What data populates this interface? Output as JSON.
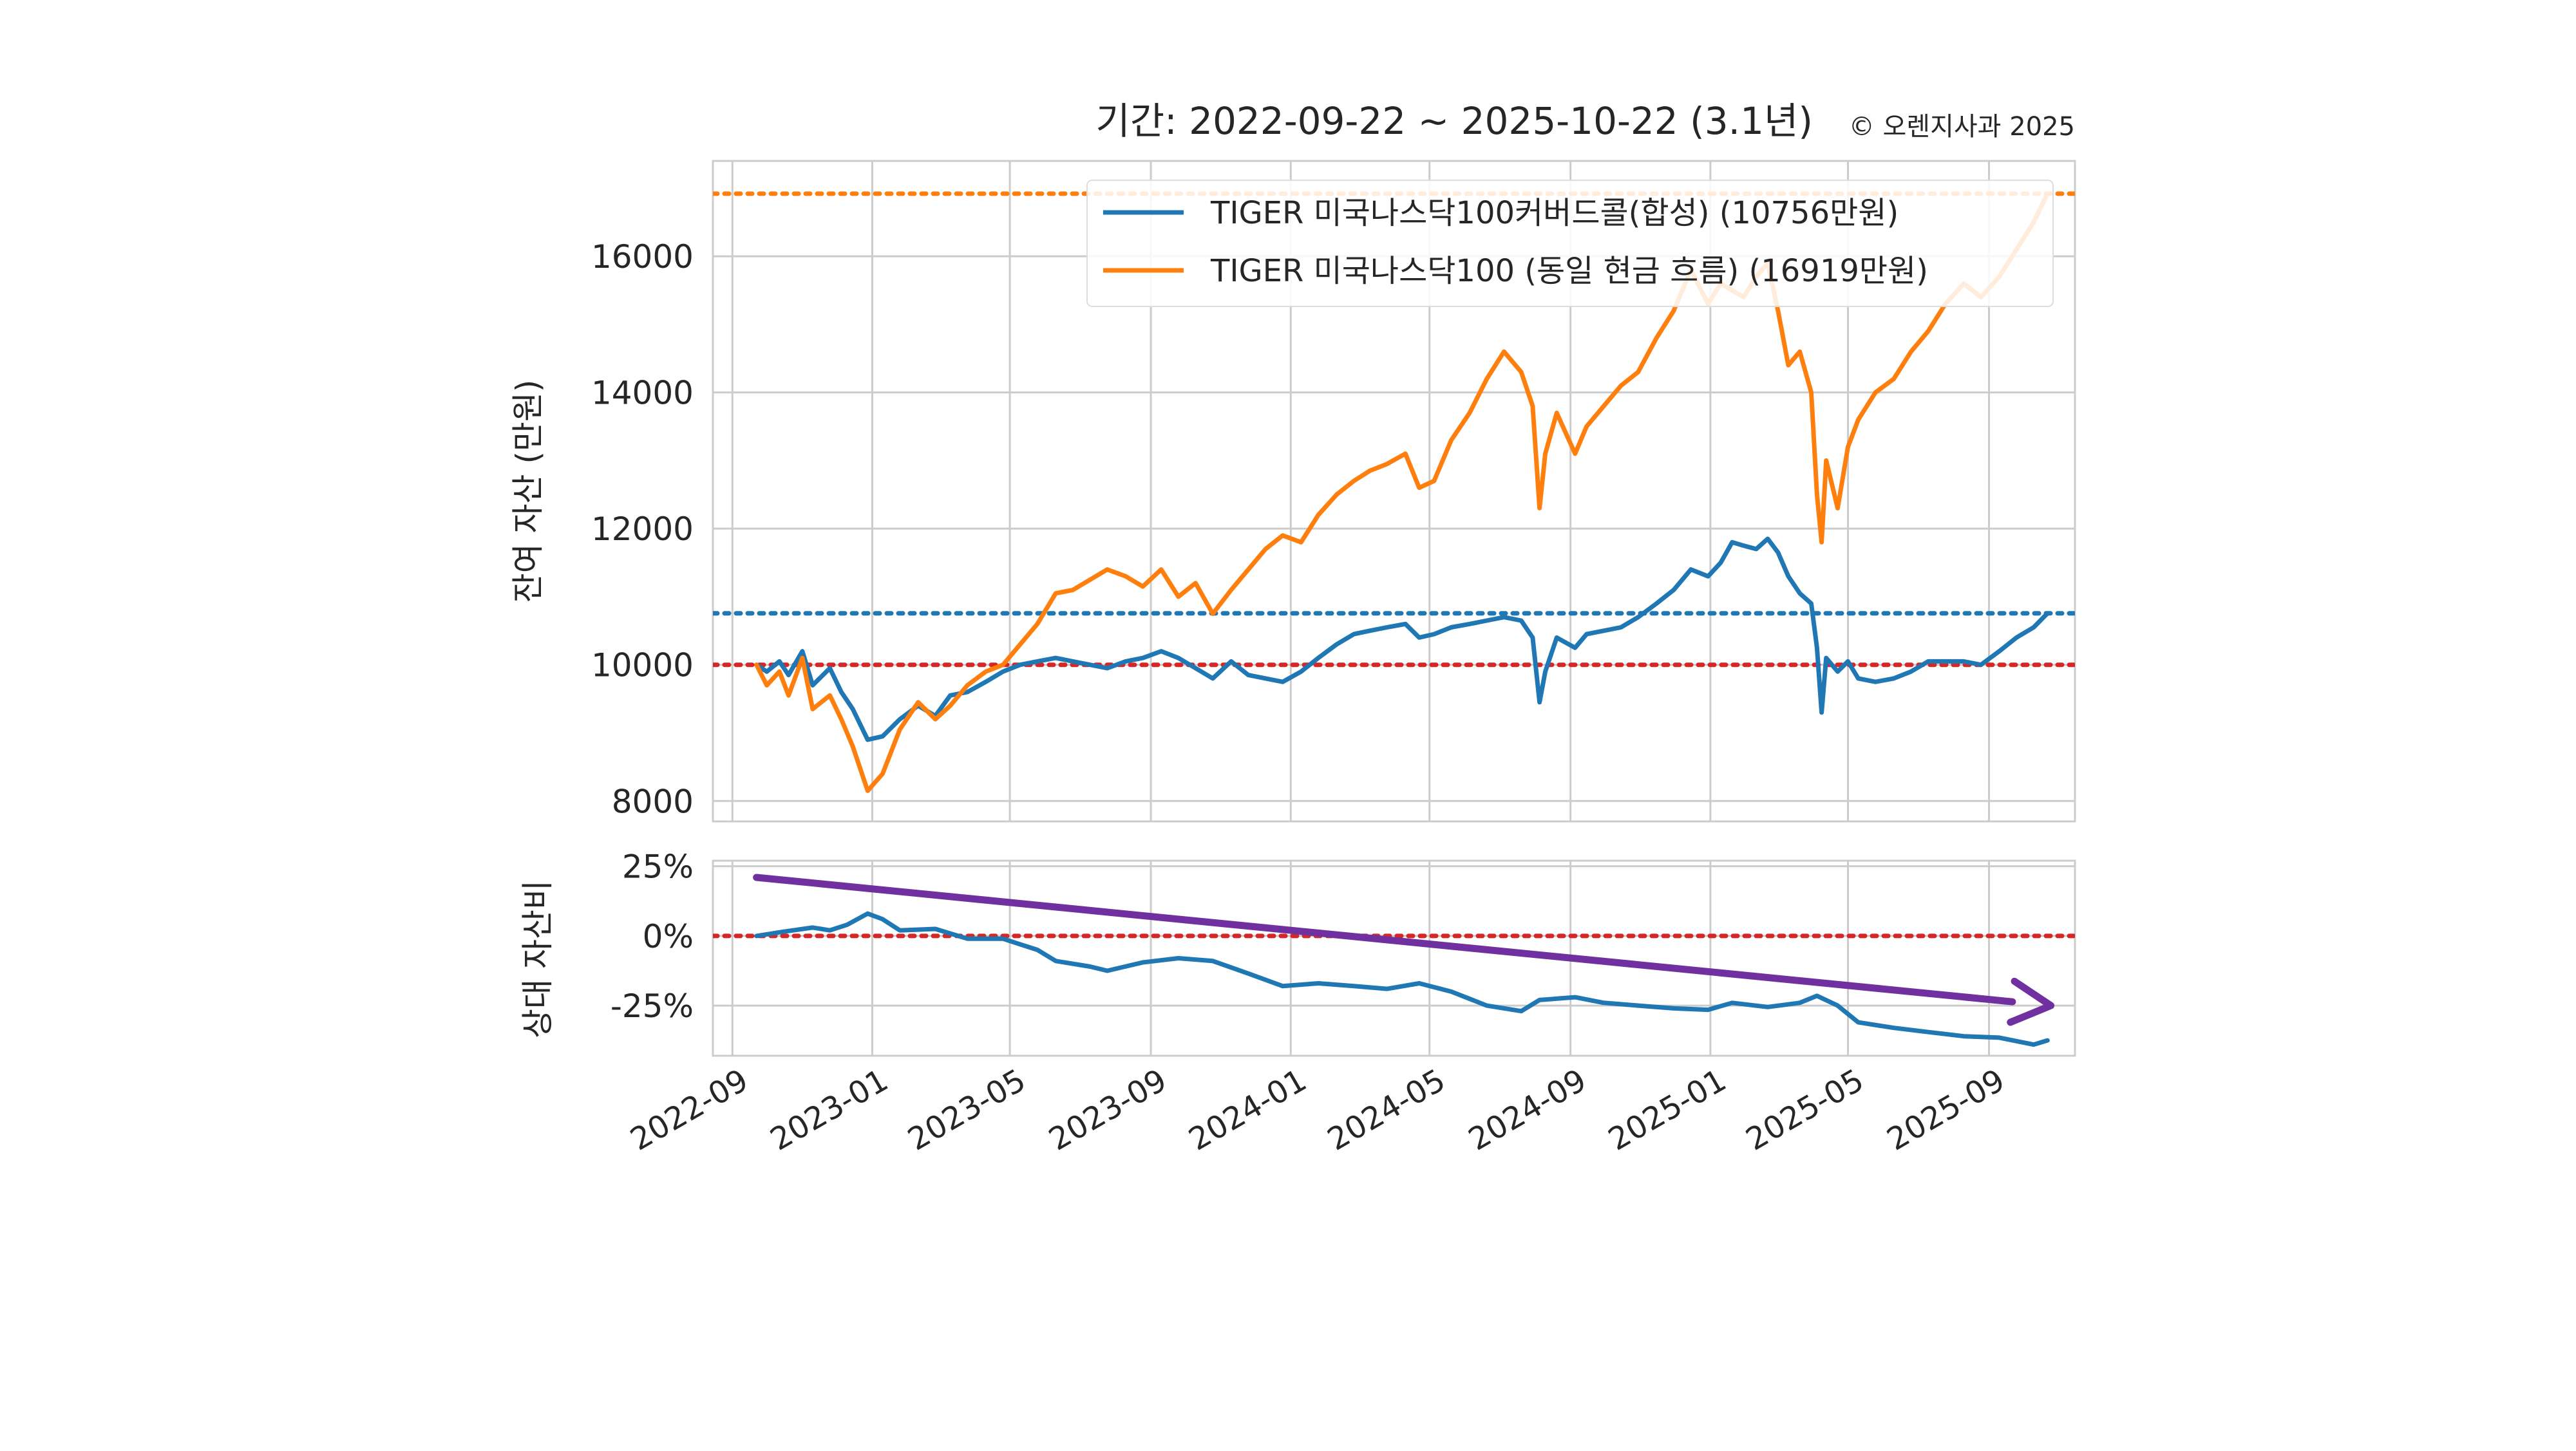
{
  "chart_data": [
    {
      "type": "line",
      "panel": "main",
      "title": "기간: 2022-09-22 ~ 2025-10-22 (3.1년)",
      "title_note": "© 오렌지사과 2025",
      "ylabel": "잔여 자산 (만원)",
      "ylim": [
        7700,
        17400
      ],
      "yticks": [
        8000,
        10000,
        12000,
        14000,
        16000
      ],
      "xlim": [
        "2022-08-15",
        "2025-11-15"
      ],
      "xticks": [
        "2022-09",
        "2023-01",
        "2023-05",
        "2023-09",
        "2024-01",
        "2024-05",
        "2024-09",
        "2025-01",
        "2025-05",
        "2025-09"
      ],
      "grid": true,
      "legend_position": "top-right",
      "reference_lines": [
        {
          "value": 16919,
          "color": "#ff7f0e",
          "style": "dotted"
        },
        {
          "value": 10756,
          "color": "#1f77b4",
          "style": "dotted"
        },
        {
          "value": 10000,
          "color": "#d62728",
          "style": "dotted"
        }
      ],
      "series": [
        {
          "name": "TIGER 미국나스닥100커버드콜(합성)  (10756만원)",
          "color": "#1f77b4",
          "points": [
            [
              "2022-09-22",
              10000
            ],
            [
              "2022-10-01",
              9900
            ],
            [
              "2022-10-12",
              10050
            ],
            [
              "2022-10-20",
              9850
            ],
            [
              "2022-11-01",
              10200
            ],
            [
              "2022-11-10",
              9700
            ],
            [
              "2022-11-25",
              9950
            ],
            [
              "2022-12-05",
              9600
            ],
            [
              "2022-12-15",
              9350
            ],
            [
              "2022-12-28",
              8900
            ],
            [
              "2023-01-10",
              8950
            ],
            [
              "2023-01-25",
              9200
            ],
            [
              "2023-02-10",
              9400
            ],
            [
              "2023-02-25",
              9250
            ],
            [
              "2023-03-10",
              9550
            ],
            [
              "2023-03-25",
              9600
            ],
            [
              "2023-04-10",
              9750
            ],
            [
              "2023-04-25",
              9900
            ],
            [
              "2023-05-10",
              10000
            ],
            [
              "2023-05-25",
              10050
            ],
            [
              "2023-06-10",
              10100
            ],
            [
              "2023-06-25",
              10050
            ],
            [
              "2023-07-10",
              10000
            ],
            [
              "2023-07-25",
              9950
            ],
            [
              "2023-08-10",
              10050
            ],
            [
              "2023-08-25",
              10100
            ],
            [
              "2023-09-10",
              10200
            ],
            [
              "2023-09-25",
              10100
            ],
            [
              "2023-10-10",
              9950
            ],
            [
              "2023-10-25",
              9800
            ],
            [
              "2023-11-10",
              10050
            ],
            [
              "2023-11-25",
              9850
            ],
            [
              "2023-12-10",
              9800
            ],
            [
              "2023-12-25",
              9750
            ],
            [
              "2024-01-10",
              9900
            ],
            [
              "2024-01-25",
              10100
            ],
            [
              "2024-02-10",
              10300
            ],
            [
              "2024-02-25",
              10450
            ],
            [
              "2024-03-10",
              10500
            ],
            [
              "2024-03-25",
              10550
            ],
            [
              "2024-04-10",
              10600
            ],
            [
              "2024-04-22",
              10400
            ],
            [
              "2024-05-05",
              10450
            ],
            [
              "2024-05-20",
              10550
            ],
            [
              "2024-06-05",
              10600
            ],
            [
              "2024-06-20",
              10650
            ],
            [
              "2024-07-05",
              10700
            ],
            [
              "2024-07-20",
              10650
            ],
            [
              "2024-07-30",
              10400
            ],
            [
              "2024-08-05",
              9450
            ],
            [
              "2024-08-10",
              9900
            ],
            [
              "2024-08-20",
              10400
            ],
            [
              "2024-09-05",
              10250
            ],
            [
              "2024-09-15",
              10450
            ],
            [
              "2024-09-30",
              10500
            ],
            [
              "2024-10-15",
              10550
            ],
            [
              "2024-10-30",
              10700
            ],
            [
              "2024-11-15",
              10900
            ],
            [
              "2024-11-30",
              11100
            ],
            [
              "2024-12-15",
              11400
            ],
            [
              "2024-12-30",
              11300
            ],
            [
              "2025-01-10",
              11500
            ],
            [
              "2025-01-20",
              11800
            ],
            [
              "2025-01-30",
              11750
            ],
            [
              "2025-02-10",
              11700
            ],
            [
              "2025-02-20",
              11850
            ],
            [
              "2025-03-01",
              11650
            ],
            [
              "2025-03-10",
              11300
            ],
            [
              "2025-03-20",
              11050
            ],
            [
              "2025-03-30",
              10900
            ],
            [
              "2025-04-04",
              10250
            ],
            [
              "2025-04-08",
              9300
            ],
            [
              "2025-04-12",
              10100
            ],
            [
              "2025-04-22",
              9900
            ],
            [
              "2025-05-01",
              10050
            ],
            [
              "2025-05-10",
              9800
            ],
            [
              "2025-05-25",
              9750
            ],
            [
              "2025-06-10",
              9800
            ],
            [
              "2025-06-25",
              9900
            ],
            [
              "2025-07-10",
              10050
            ],
            [
              "2025-07-25",
              10050
            ],
            [
              "2025-08-10",
              10050
            ],
            [
              "2025-08-25",
              10000
            ],
            [
              "2025-09-10",
              10200
            ],
            [
              "2025-09-25",
              10400
            ],
            [
              "2025-10-10",
              10550
            ],
            [
              "2025-10-22",
              10756
            ]
          ]
        },
        {
          "name": "TIGER 미국나스닥100 (동일 현금 흐름) (16919만원)",
          "color": "#ff7f0e",
          "points": [
            [
              "2022-09-22",
              10000
            ],
            [
              "2022-10-01",
              9700
            ],
            [
              "2022-10-12",
              9900
            ],
            [
              "2022-10-20",
              9550
            ],
            [
              "2022-11-01",
              10100
            ],
            [
              "2022-11-10",
              9350
            ],
            [
              "2022-11-25",
              9550
            ],
            [
              "2022-12-05",
              9200
            ],
            [
              "2022-12-15",
              8800
            ],
            [
              "2022-12-28",
              8150
            ],
            [
              "2023-01-10",
              8400
            ],
            [
              "2023-01-25",
              9050
            ],
            [
              "2023-02-10",
              9450
            ],
            [
              "2023-02-25",
              9200
            ],
            [
              "2023-03-10",
              9400
            ],
            [
              "2023-03-25",
              9700
            ],
            [
              "2023-04-10",
              9900
            ],
            [
              "2023-04-25",
              10000
            ],
            [
              "2023-05-10",
              10300
            ],
            [
              "2023-05-25",
              10600
            ],
            [
              "2023-06-10",
              11050
            ],
            [
              "2023-06-25",
              11100
            ],
            [
              "2023-07-10",
              11250
            ],
            [
              "2023-07-25",
              11400
            ],
            [
              "2023-08-10",
              11300
            ],
            [
              "2023-08-25",
              11150
            ],
            [
              "2023-09-10",
              11400
            ],
            [
              "2023-09-25",
              11000
            ],
            [
              "2023-10-10",
              11200
            ],
            [
              "2023-10-25",
              10750
            ],
            [
              "2023-11-10",
              11100
            ],
            [
              "2023-11-25",
              11400
            ],
            [
              "2023-12-10",
              11700
            ],
            [
              "2023-12-25",
              11900
            ],
            [
              "2024-01-10",
              11800
            ],
            [
              "2024-01-25",
              12200
            ],
            [
              "2024-02-10",
              12500
            ],
            [
              "2024-02-25",
              12700
            ],
            [
              "2024-03-10",
              12850
            ],
            [
              "2024-03-25",
              12950
            ],
            [
              "2024-04-10",
              13100
            ],
            [
              "2024-04-22",
              12600
            ],
            [
              "2024-05-05",
              12700
            ],
            [
              "2024-05-20",
              13300
            ],
            [
              "2024-06-05",
              13700
            ],
            [
              "2024-06-20",
              14200
            ],
            [
              "2024-07-05",
              14600
            ],
            [
              "2024-07-20",
              14300
            ],
            [
              "2024-07-30",
              13800
            ],
            [
              "2024-08-05",
              12300
            ],
            [
              "2024-08-10",
              13100
            ],
            [
              "2024-08-20",
              13700
            ],
            [
              "2024-09-05",
              13100
            ],
            [
              "2024-09-15",
              13500
            ],
            [
              "2024-09-30",
              13800
            ],
            [
              "2024-10-15",
              14100
            ],
            [
              "2024-10-30",
              14300
            ],
            [
              "2024-11-15",
              14800
            ],
            [
              "2024-11-30",
              15200
            ],
            [
              "2024-12-15",
              15800
            ],
            [
              "2024-12-30",
              15300
            ],
            [
              "2025-01-10",
              15600
            ],
            [
              "2025-01-20",
              15500
            ],
            [
              "2025-01-30",
              15400
            ],
            [
              "2025-02-10",
              15700
            ],
            [
              "2025-02-20",
              15900
            ],
            [
              "2025-03-01",
              15200
            ],
            [
              "2025-03-10",
              14400
            ],
            [
              "2025-03-20",
              14600
            ],
            [
              "2025-03-30",
              14000
            ],
            [
              "2025-04-04",
              12500
            ],
            [
              "2025-04-08",
              11800
            ],
            [
              "2025-04-12",
              13000
            ],
            [
              "2025-04-22",
              12300
            ],
            [
              "2025-05-01",
              13200
            ],
            [
              "2025-05-10",
              13600
            ],
            [
              "2025-05-25",
              14000
            ],
            [
              "2025-06-10",
              14200
            ],
            [
              "2025-06-25",
              14600
            ],
            [
              "2025-07-10",
              14900
            ],
            [
              "2025-07-25",
              15300
            ],
            [
              "2025-08-10",
              15600
            ],
            [
              "2025-08-25",
              15400
            ],
            [
              "2025-09-10",
              15700
            ],
            [
              "2025-09-25",
              16100
            ],
            [
              "2025-10-10",
              16500
            ],
            [
              "2025-10-22",
              16919
            ]
          ]
        }
      ]
    },
    {
      "type": "line",
      "panel": "ratio",
      "ylabel": "상대 자산비",
      "ylim": [
        -43,
        27
      ],
      "yticks": [
        25,
        0,
        -25
      ],
      "ytick_labels": [
        "25%",
        "0%",
        "-25%"
      ],
      "xlim": [
        "2022-08-15",
        "2025-11-15"
      ],
      "grid": true,
      "reference_lines": [
        {
          "value": 0,
          "color": "#d62728",
          "style": "dotted"
        }
      ],
      "trend_arrow": {
        "color": "#7030a0",
        "from": [
          "2022-09-22",
          21
        ],
        "to": [
          "2025-10-25",
          -25
        ]
      },
      "series": [
        {
          "color": "#1f77b4",
          "points": [
            [
              "2022-09-22",
              0
            ],
            [
              "2022-10-15",
              1.5
            ],
            [
              "2022-11-10",
              3
            ],
            [
              "2022-11-25",
              2
            ],
            [
              "2022-12-10",
              4
            ],
            [
              "2022-12-28",
              8
            ],
            [
              "2023-01-10",
              6
            ],
            [
              "2023-01-25",
              2
            ],
            [
              "2023-02-25",
              2.5
            ],
            [
              "2023-03-25",
              -1
            ],
            [
              "2023-04-25",
              -1
            ],
            [
              "2023-05-10",
              -3
            ],
            [
              "2023-05-25",
              -5
            ],
            [
              "2023-06-10",
              -9
            ],
            [
              "2023-07-10",
              -11
            ],
            [
              "2023-07-25",
              -12.5
            ],
            [
              "2023-08-25",
              -9.5
            ],
            [
              "2023-09-25",
              -8
            ],
            [
              "2023-10-25",
              -9
            ],
            [
              "2023-11-25",
              -13.5
            ],
            [
              "2023-12-25",
              -18
            ],
            [
              "2024-01-25",
              -17
            ],
            [
              "2024-02-25",
              -18
            ],
            [
              "2024-03-25",
              -19
            ],
            [
              "2024-04-22",
              -17
            ],
            [
              "2024-05-20",
              -20
            ],
            [
              "2024-06-20",
              -25
            ],
            [
              "2024-07-20",
              -27
            ],
            [
              "2024-08-05",
              -23
            ],
            [
              "2024-09-05",
              -22
            ],
            [
              "2024-09-30",
              -24
            ],
            [
              "2024-10-30",
              -25
            ],
            [
              "2024-11-30",
              -26
            ],
            [
              "2024-12-30",
              -26.5
            ],
            [
              "2025-01-20",
              -24
            ],
            [
              "2025-02-20",
              -25.5
            ],
            [
              "2025-03-20",
              -24
            ],
            [
              "2025-04-04",
              -21.5
            ],
            [
              "2025-04-22",
              -25
            ],
            [
              "2025-05-10",
              -31
            ],
            [
              "2025-06-10",
              -33
            ],
            [
              "2025-07-10",
              -34.5
            ],
            [
              "2025-08-10",
              -36
            ],
            [
              "2025-09-10",
              -36.5
            ],
            [
              "2025-10-10",
              -39
            ],
            [
              "2025-10-22",
              -37.5
            ]
          ]
        }
      ]
    }
  ]
}
